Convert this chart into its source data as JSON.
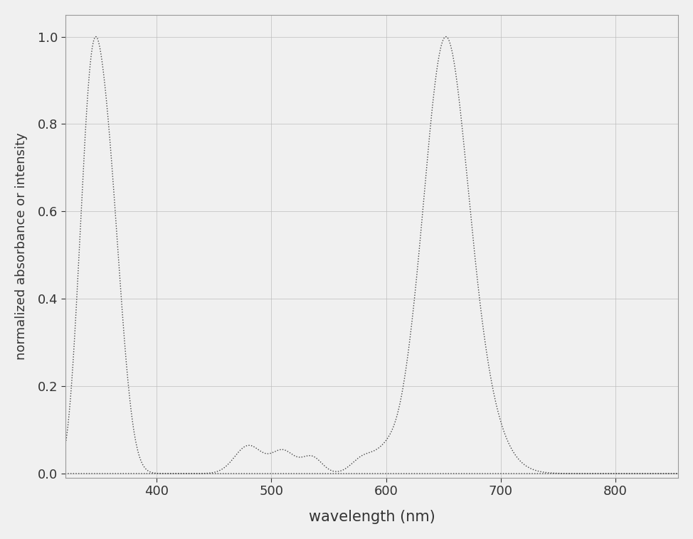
{
  "title": "",
  "xlabel": "wavelength (nm)",
  "ylabel": "normalized absorbance or intensity",
  "xlim": [
    320,
    855
  ],
  "ylim": [
    -0.01,
    1.05
  ],
  "xticks": [
    400,
    500,
    600,
    700,
    800
  ],
  "yticks": [
    0.0,
    0.2,
    0.4,
    0.6,
    0.8,
    1.0
  ],
  "line_color": "#444444",
  "background_color": "#f0f0f0",
  "grid_color": "#bbbbbb",
  "xlabel_fontsize": 15,
  "ylabel_fontsize": 13,
  "tick_fontsize": 13
}
